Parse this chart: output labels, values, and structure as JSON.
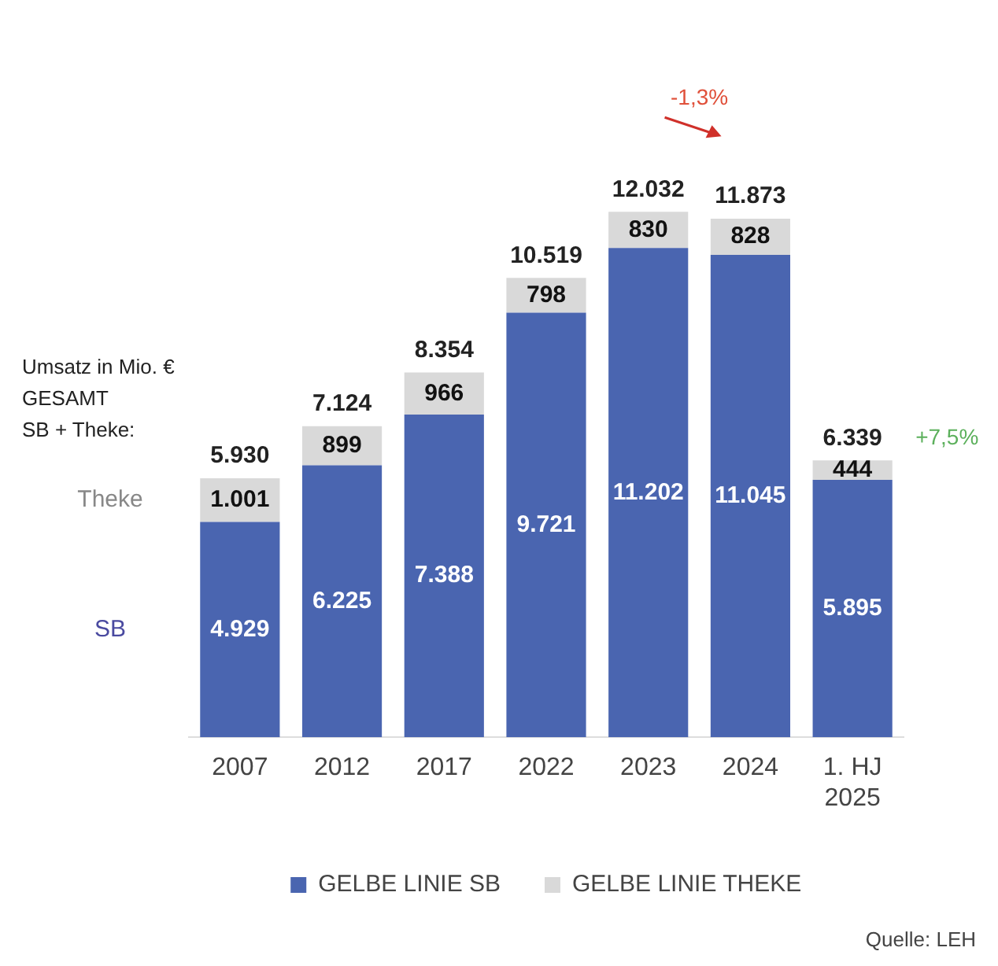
{
  "chart_data": {
    "type": "bar",
    "stacked": true,
    "categories": [
      "2007",
      "2012",
      "2017",
      "2022",
      "2023",
      "2024",
      "1. HJ\n2025"
    ],
    "series": [
      {
        "name": "GELBE LINIE SB",
        "color": "#4a65b0",
        "values": [
          4929,
          6225,
          7388,
          9721,
          11202,
          11045,
          5895
        ],
        "value_labels": [
          "4.929",
          "6.225",
          "7.388",
          "9.721",
          "11.202",
          "11.045",
          "5.895"
        ]
      },
      {
        "name": "GELBE LINIE THEKE",
        "color": "#d9d9d9",
        "values": [
          1001,
          899,
          966,
          798,
          830,
          828,
          444
        ],
        "value_labels": [
          "1.001",
          "899",
          "966",
          "798",
          "830",
          "828",
          "444"
        ]
      }
    ],
    "totals": [
      "5.930",
      "7.124",
      "8.354",
      "10.519",
      "12.032",
      "11.873",
      "6.339"
    ],
    "legend": "bottom",
    "grid": false,
    "tick_labels": "x",
    "annotations": [
      "Umsatz in Mio. €\nGESAMT\nSB + Theke:",
      "Theke",
      "SB",
      "-1,3%",
      "+7,5%",
      "Quelle: LEH"
    ]
  }
}
